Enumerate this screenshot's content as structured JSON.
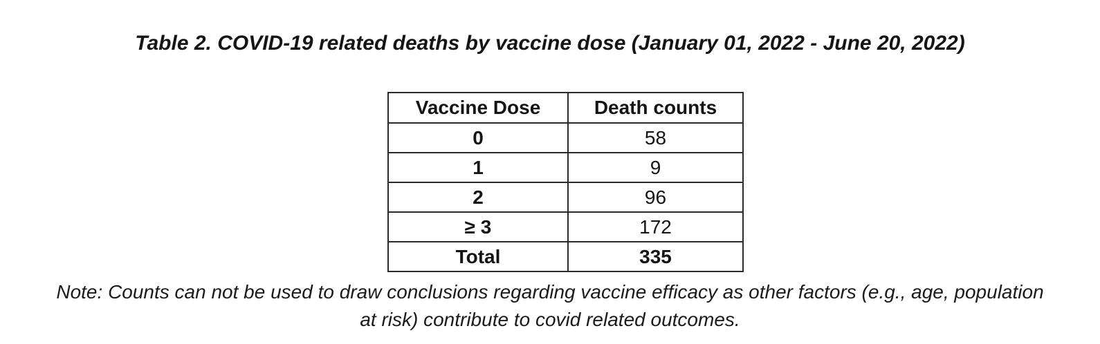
{
  "document": {
    "title": "Table 2. COVID-19 related deaths by vaccine dose (January 01, 2022 - June 20, 2022)",
    "note_line1": "Note: Counts can not be used to draw conclusions regarding vaccine efficacy as other factors (e.g., age, population",
    "note_line2": "at risk) contribute to covid related outcomes."
  },
  "table": {
    "columns": [
      "Vaccine Dose",
      "Death counts"
    ],
    "rows": [
      {
        "dose": "0",
        "count": "58",
        "is_total": false
      },
      {
        "dose": "1",
        "count": "9",
        "is_total": false
      },
      {
        "dose": "2",
        "count": "96",
        "is_total": false
      },
      {
        "dose": "≥ 3",
        "count": "172",
        "is_total": false
      },
      {
        "dose": "Total",
        "count": "335",
        "is_total": true
      }
    ]
  },
  "chart_data": {
    "type": "table",
    "title": "Table 2. COVID-19 related deaths by vaccine dose (January 01, 2022 - June 20, 2022)",
    "columns": [
      "Vaccine Dose",
      "Death counts"
    ],
    "categories": [
      "0",
      "1",
      "2",
      "≥ 3"
    ],
    "values": [
      58,
      9,
      96,
      172
    ],
    "total": 335,
    "annotations": [
      "Note: Counts can not be used to draw conclusions regarding vaccine efficacy as other factors (e.g., age, population at risk) contribute to covid related outcomes."
    ]
  },
  "colors": {
    "background": "#ffffff",
    "text": "#151515",
    "table_border": "#2a2a2a"
  }
}
